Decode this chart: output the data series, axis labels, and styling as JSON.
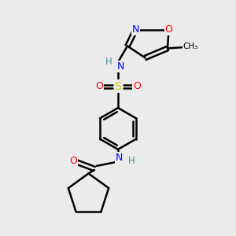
{
  "bg_color": "#ebebeb",
  "atom_colors": {
    "C": "#000000",
    "H": "#4a9090",
    "N": "#0000ff",
    "O": "#ff0000",
    "S": "#cccc00"
  },
  "bond_color": "#000000",
  "bond_width": 1.8,
  "figsize": [
    3.0,
    3.0
  ],
  "dpi": 100
}
